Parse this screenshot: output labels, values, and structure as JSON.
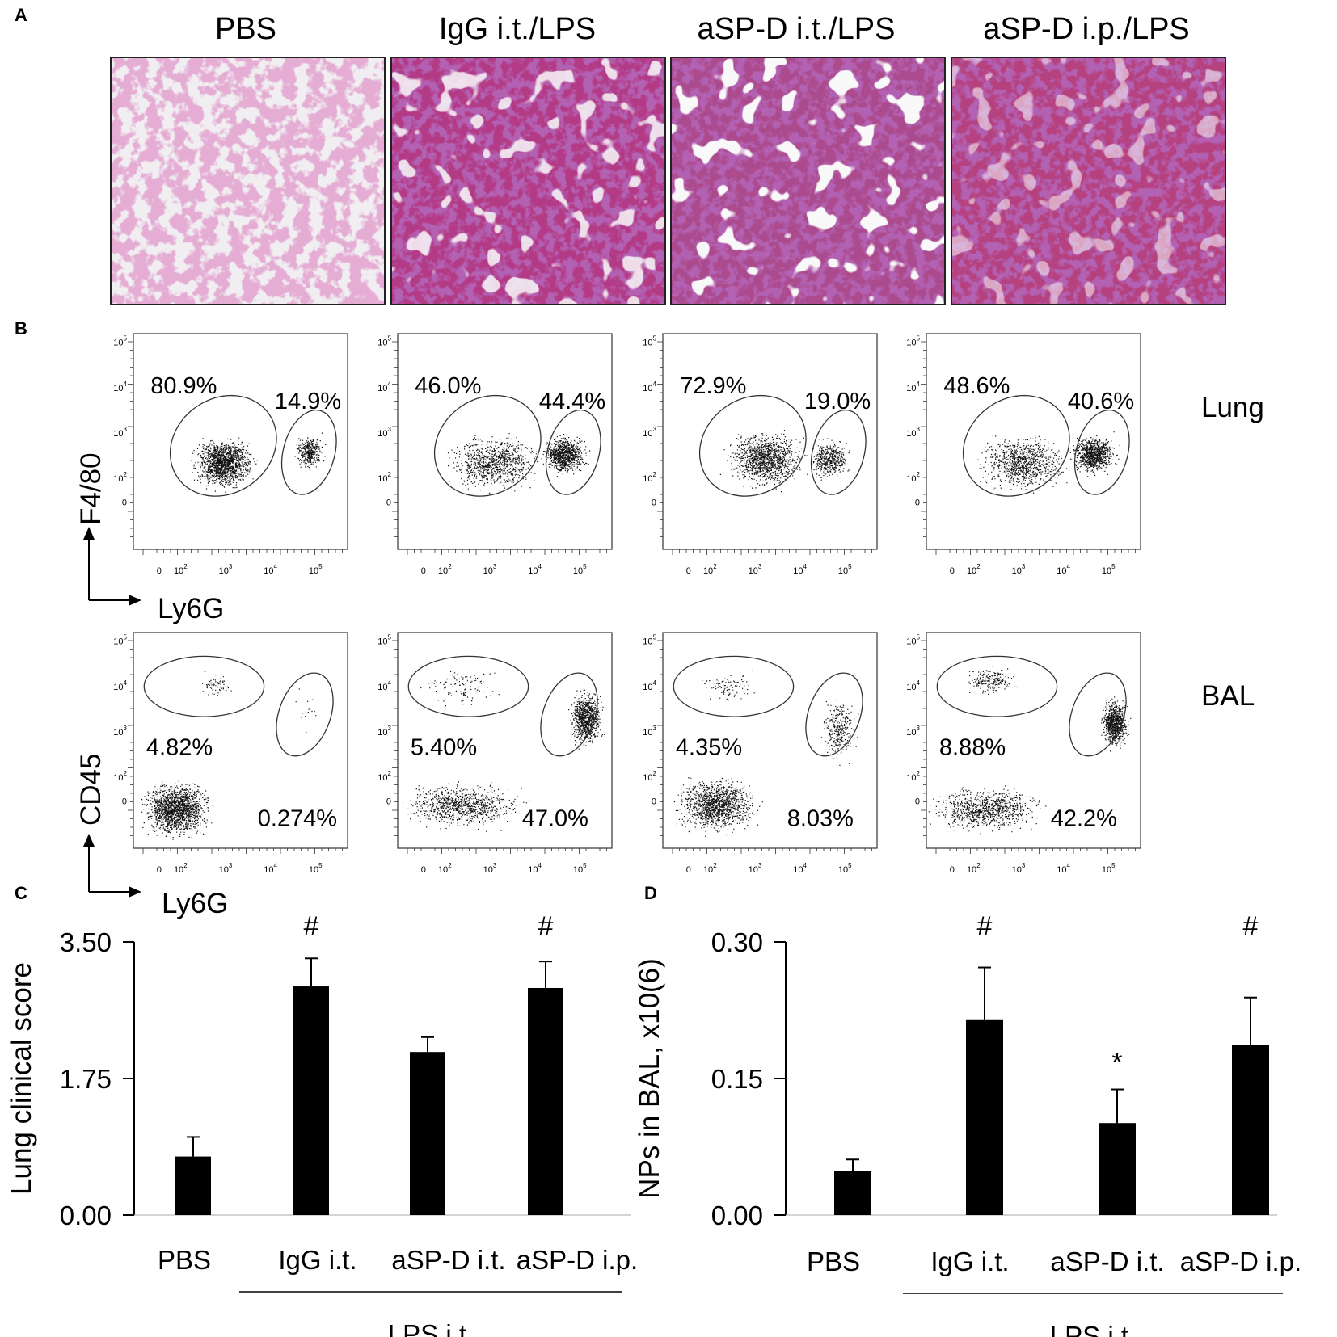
{
  "panel_labels": {
    "a": "A",
    "b": "B",
    "c": "C",
    "d": "D"
  },
  "histology": {
    "titles": [
      "PBS",
      "IgG i.t./LPS",
      "aSP-D i.t./LPS",
      "aSP-D i.p./LPS"
    ]
  },
  "flow": {
    "tick_labels": [
      "0",
      "10",
      "10",
      "10",
      "10"
    ],
    "tick_exponents": [
      "",
      "2",
      "3",
      "4",
      "5"
    ],
    "lung": {
      "row_label": "Lung",
      "y_axis": "F4/80",
      "x_axis": "Ly6G",
      "gate_a": [
        "80.9%",
        "46.0%",
        "72.9%",
        "48.6%"
      ],
      "gate_b": [
        "14.9%",
        "44.4%",
        "19.0%",
        "40.6%"
      ]
    },
    "bal": {
      "row_label": "BAL",
      "y_axis": "CD45",
      "x_axis": "Ly6G",
      "gate_a": [
        "4.82%",
        "5.40%",
        "4.35%",
        "8.88%"
      ],
      "gate_b": [
        "0.274%",
        "47.0%",
        "8.03%",
        "42.2%"
      ]
    }
  },
  "chart_data": [
    {
      "type": "bar",
      "categories": [
        "PBS",
        "IgG i.t.",
        "aSP-D i.t.",
        "aSP-D i.p."
      ],
      "values": [
        0.75,
        2.93,
        2.09,
        2.91
      ],
      "errors": [
        0.25,
        0.36,
        0.19,
        0.34
      ],
      "significance": [
        "",
        "#",
        "",
        "#"
      ],
      "ylabel": "Lung clinical score",
      "yticks": [
        "0.00",
        "1.75",
        "3.50"
      ],
      "ylim": [
        0,
        3.5
      ],
      "group_label": "LPS i.t."
    },
    {
      "type": "bar",
      "categories": [
        "PBS",
        "IgG i.t.",
        "aSP-D i.t.",
        "aSP-D i.p."
      ],
      "values": [
        0.048,
        0.215,
        0.101,
        0.187
      ],
      "errors": [
        0.013,
        0.057,
        0.037,
        0.052
      ],
      "significance": [
        "",
        "#",
        "*",
        "#"
      ],
      "ylabel": "NPs in BAL, x10(6)",
      "yticks": [
        "0.00",
        "0.15",
        "0.30"
      ],
      "ylim": [
        0,
        0.3
      ],
      "group_label": "LPS i.t."
    }
  ],
  "colors": {
    "bar": "#000000",
    "stain_pink": "#c8457f",
    "stain_purple": "#6a2a7a",
    "background": "#ffffff"
  }
}
